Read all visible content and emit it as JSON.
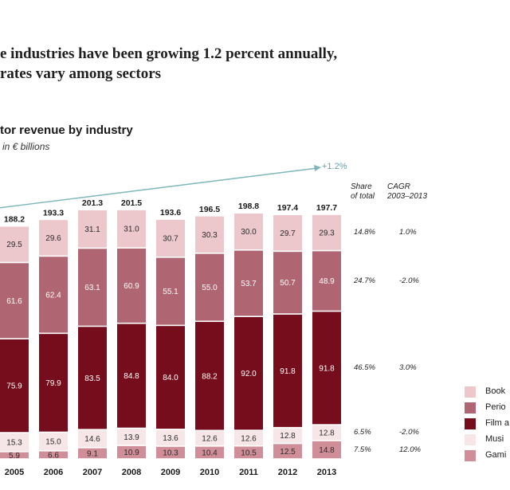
{
  "headline": {
    "line1": "e industries have been growing 1.2 percent annually,",
    "line2": "rates vary among sectors"
  },
  "subtitle": "tor revenue by industry",
  "unit": "in € billions",
  "growth_label": "+1.2%",
  "table_headers": {
    "share": [
      "Share",
      "of total"
    ],
    "cagr": [
      "CAGR",
      "2003–2013"
    ]
  },
  "colors": {
    "books": "#ecc8cd",
    "periodicals": "#b06672",
    "film": "#760d1c",
    "music": "#f7e6e8",
    "gaming": "#cf8e98",
    "arrow": "#7fb5bb"
  },
  "chart_data": {
    "type": "bar",
    "stacked": true,
    "categories": [
      "2005",
      "2006",
      "2007",
      "2008",
      "2009",
      "2010",
      "2011",
      "2012",
      "2013"
    ],
    "totals": [
      "188.2",
      "193.3",
      "201.3",
      "201.5",
      "193.6",
      "196.5",
      "198.8",
      "197.4",
      "197.7"
    ],
    "series": [
      {
        "key": "gaming",
        "name": "Gami",
        "values": [
          5.9,
          6.6,
          9.1,
          10.9,
          10.3,
          10.4,
          10.5,
          12.5,
          14.8
        ],
        "share": "7.5%",
        "cagr": "12.0%"
      },
      {
        "key": "music",
        "name": "Musi",
        "values": [
          15.3,
          15.0,
          14.6,
          13.9,
          13.6,
          12.6,
          12.6,
          12.8,
          12.8
        ],
        "share": "6.5%",
        "cagr": "-2.0%"
      },
      {
        "key": "film",
        "name": "Film a",
        "values": [
          75.9,
          79.9,
          83.5,
          84.8,
          84.0,
          88.2,
          92.0,
          91.8,
          91.8
        ],
        "share": "46.5%",
        "cagr": "3.0%"
      },
      {
        "key": "periodicals",
        "name": "Perio",
        "values": [
          61.6,
          62.4,
          63.1,
          60.9,
          55.1,
          55.0,
          53.7,
          50.7,
          48.9
        ],
        "share": "24.7%",
        "cagr": "-2.0%"
      },
      {
        "key": "books",
        "name": "Book",
        "values": [
          29.5,
          29.6,
          31.1,
          31.0,
          30.7,
          30.3,
          30.0,
          29.7,
          29.3
        ],
        "share": "14.8%",
        "cagr": "1.0%"
      }
    ],
    "legend_order": [
      "books",
      "periodicals",
      "film",
      "music",
      "gaming"
    ],
    "ylim": [
      0,
      201.5
    ]
  }
}
